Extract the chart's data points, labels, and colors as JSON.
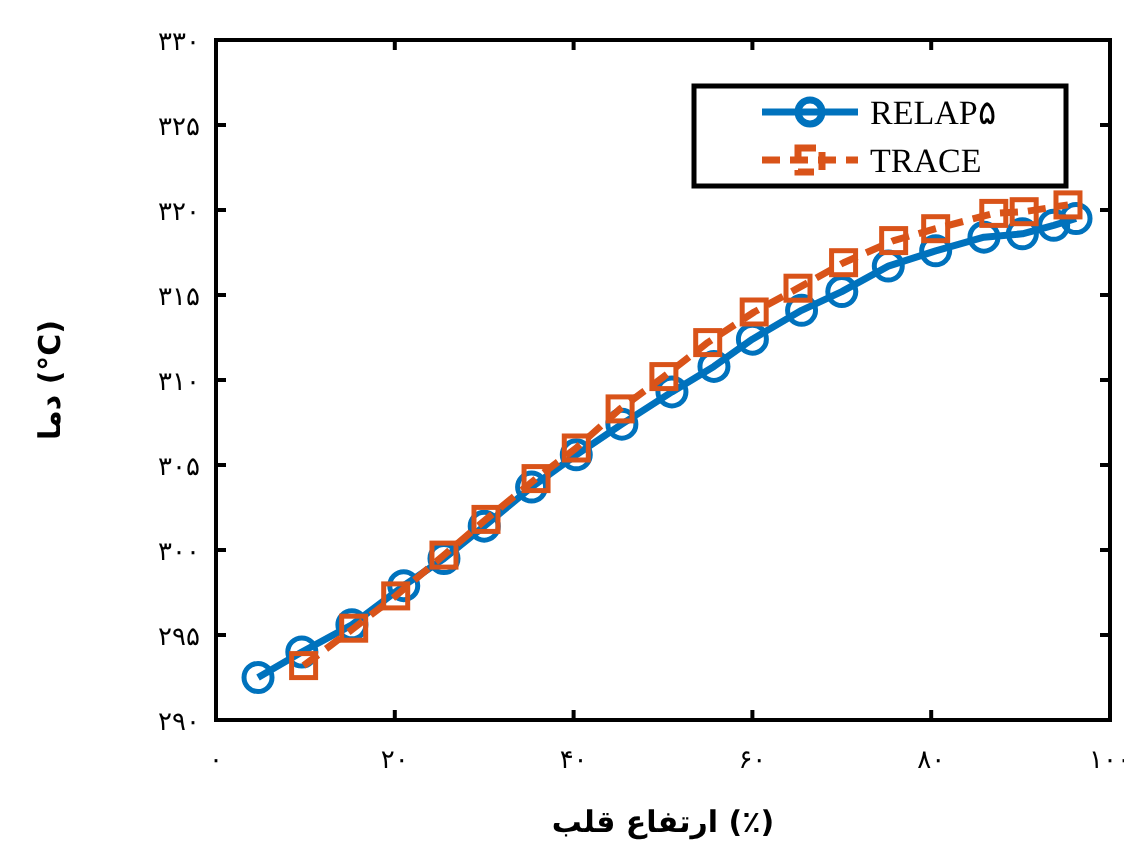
{
  "chart_data": {
    "type": "line",
    "xlabel": "ارتفاع قلب (٪)",
    "ylabel": "دما (°C)",
    "xlim": [
      0,
      100
    ],
    "ylim": [
      290,
      330
    ],
    "xticks": [
      {
        "value": 0,
        "label": "۰"
      },
      {
        "value": 20,
        "label": "۲۰"
      },
      {
        "value": 40,
        "label": "۴۰"
      },
      {
        "value": 60,
        "label": "۶۰"
      },
      {
        "value": 80,
        "label": "۸۰"
      },
      {
        "value": 100,
        "label": "۱۰۰"
      }
    ],
    "yticks": [
      {
        "value": 290,
        "label": "۲۹۰"
      },
      {
        "value": 295,
        "label": "۲۹۵"
      },
      {
        "value": 300,
        "label": "۳۰۰"
      },
      {
        "value": 305,
        "label": "۳۰۵"
      },
      {
        "value": 310,
        "label": "۳۱۰"
      },
      {
        "value": 315,
        "label": "۳۱۵"
      },
      {
        "value": 320,
        "label": "۳۲۰"
      },
      {
        "value": 325,
        "label": "۳۲۵"
      },
      {
        "value": 330,
        "label": "۳۳۰"
      }
    ],
    "legend": "top right",
    "series": [
      {
        "name": "RELAP۵",
        "color": "#0072bd",
        "marker": "circle",
        "line_style": "solid",
        "x": [
          4.7,
          9.6,
          15.2,
          21.0,
          25.5,
          30.0,
          35.3,
          40.3,
          45.4,
          51.0,
          55.7,
          60.0,
          65.5,
          70.0,
          75.2,
          80.5,
          85.9,
          90.2,
          93.7,
          96.2
        ],
        "values": [
          292.5,
          294.0,
          295.6,
          297.9,
          299.5,
          301.4,
          303.7,
          305.6,
          307.4,
          309.3,
          310.8,
          312.4,
          314.1,
          315.2,
          316.7,
          317.6,
          318.4,
          318.6,
          319.1,
          319.5
        ]
      },
      {
        "name": "TRACE",
        "color": "#d95319",
        "marker": "square",
        "line_style": "dashed",
        "x": [
          9.8,
          15.4,
          20.1,
          25.5,
          30.2,
          35.8,
          40.3,
          45.2,
          50.1,
          55.0,
          60.2,
          65.1,
          70.2,
          75.8,
          80.5,
          87.0,
          90.4,
          95.3
        ],
        "values": [
          293.2,
          295.4,
          297.3,
          299.7,
          301.8,
          304.2,
          306.0,
          308.3,
          310.2,
          312.2,
          314.0,
          315.4,
          316.9,
          318.2,
          318.9,
          319.8,
          319.9,
          320.3
        ]
      }
    ]
  }
}
